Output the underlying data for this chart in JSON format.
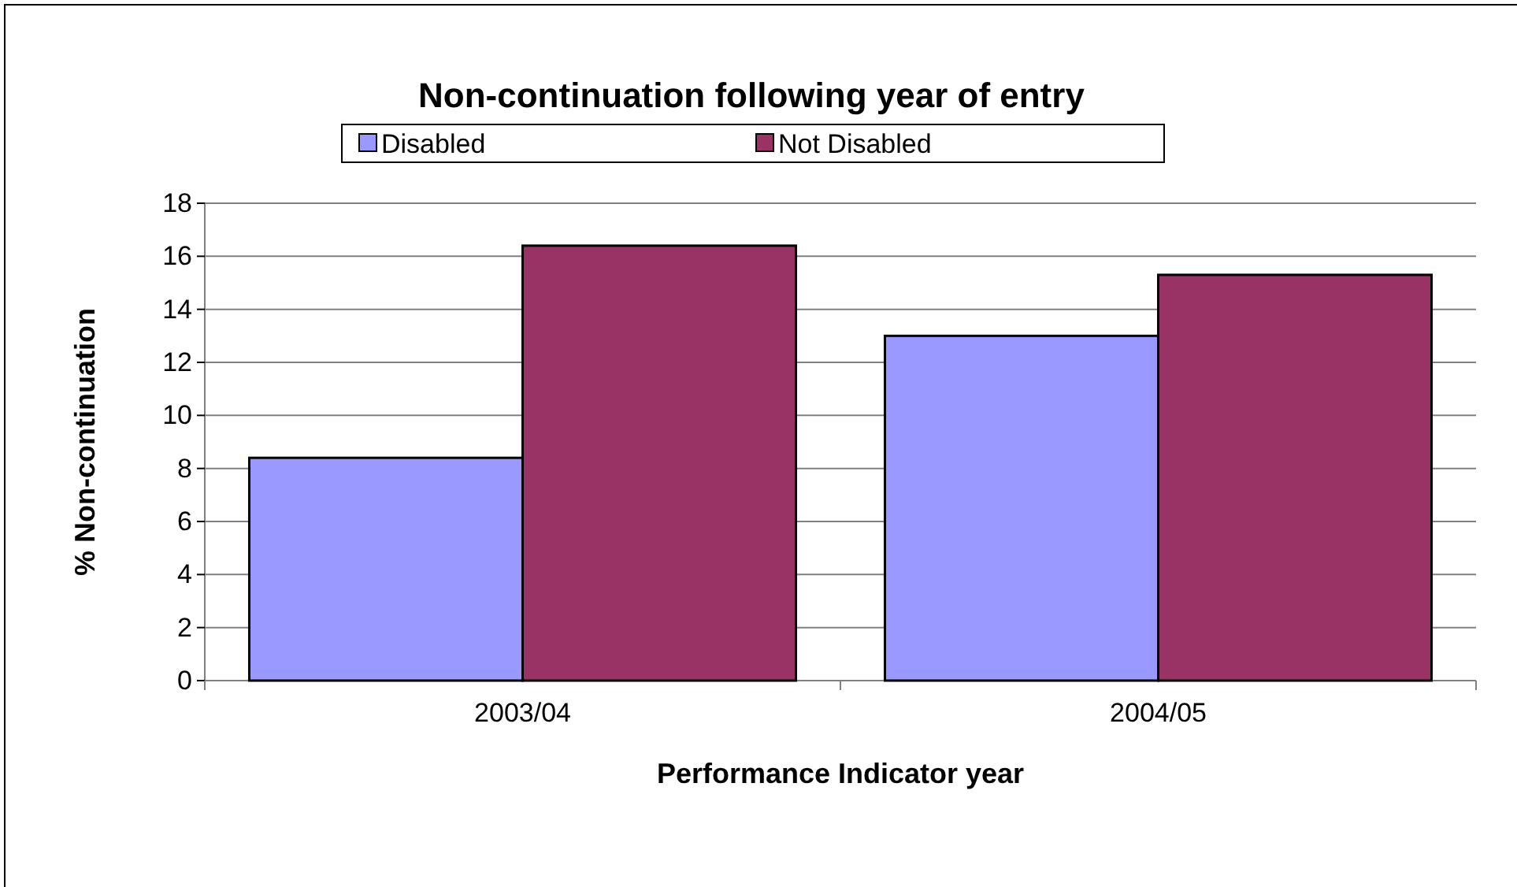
{
  "chart_data": {
    "type": "bar",
    "title": "Non-continuation following year of entry",
    "xlabel": "Performance Indicator year",
    "ylabel": "% Non-continuation",
    "categories": [
      "2003/04",
      "2004/05"
    ],
    "series": [
      {
        "name": "Disabled",
        "color": "#9999ff",
        "values": [
          8.4,
          13.0
        ]
      },
      {
        "name": "Not Disabled",
        "color": "#993366",
        "values": [
          16.4,
          15.3
        ]
      }
    ],
    "ylim": [
      0,
      18
    ],
    "yticks": [
      0,
      2,
      4,
      6,
      8,
      10,
      12,
      14,
      16,
      18
    ],
    "grid": "y",
    "legend": "top"
  }
}
